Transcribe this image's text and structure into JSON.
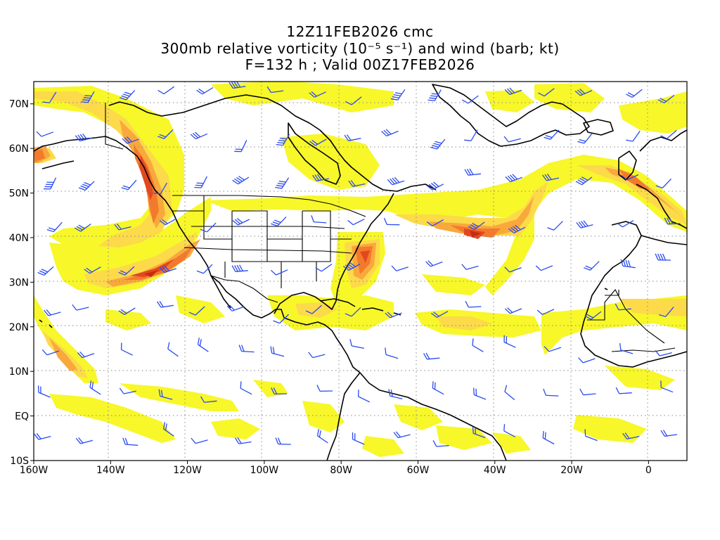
{
  "title": {
    "line1": "12Z11FEB2026 cmc",
    "line2": "300mb relative vorticity (10⁻⁵ s⁻¹) and wind (barb; kt)",
    "line3": "F=132 h ; Valid 00Z17FEB2026"
  },
  "axes": {
    "x_ticks": [
      {
        "lon": -160,
        "label": "160W"
      },
      {
        "lon": -140,
        "label": "140W"
      },
      {
        "lon": -120,
        "label": "120W"
      },
      {
        "lon": -100,
        "label": "100W"
      },
      {
        "lon": -80,
        "label": "80W"
      },
      {
        "lon": -60,
        "label": "60W"
      },
      {
        "lon": -40,
        "label": "40W"
      },
      {
        "lon": -20,
        "label": "20W"
      },
      {
        "lon": 0,
        "label": "0"
      }
    ],
    "y_ticks": [
      {
        "lat": 70,
        "label": "70N"
      },
      {
        "lat": 60,
        "label": "60N"
      },
      {
        "lat": 50,
        "label": "50N"
      },
      {
        "lat": 40,
        "label": "40N"
      },
      {
        "lat": 30,
        "label": "30N"
      },
      {
        "lat": 20,
        "label": "20N"
      },
      {
        "lat": 10,
        "label": "10N"
      },
      {
        "lat": 0,
        "label": "EQ"
      },
      {
        "lat": -10,
        "label": "10S"
      }
    ],
    "lon_range": [
      -160,
      10
    ],
    "lat_range": [
      -10,
      75
    ],
    "grid": true
  },
  "colors": {
    "barb": "#2a4bf0",
    "level1": "#f7f72a",
    "level2": "#fcda4a",
    "level3": "#f9a83c",
    "level4": "#f37a2d",
    "level5": "#e2481f",
    "level6": "#c92a12"
  },
  "vorticity_features": [
    {
      "name": "pacific-jet-arc",
      "level": 4
    },
    {
      "name": "alaska-coast-band",
      "level": 5
    },
    {
      "name": "atlantic-jet",
      "level": 5
    },
    {
      "name": "us-east-coast-max",
      "level": 5
    },
    {
      "name": "europe-band",
      "level": 4
    }
  ]
}
